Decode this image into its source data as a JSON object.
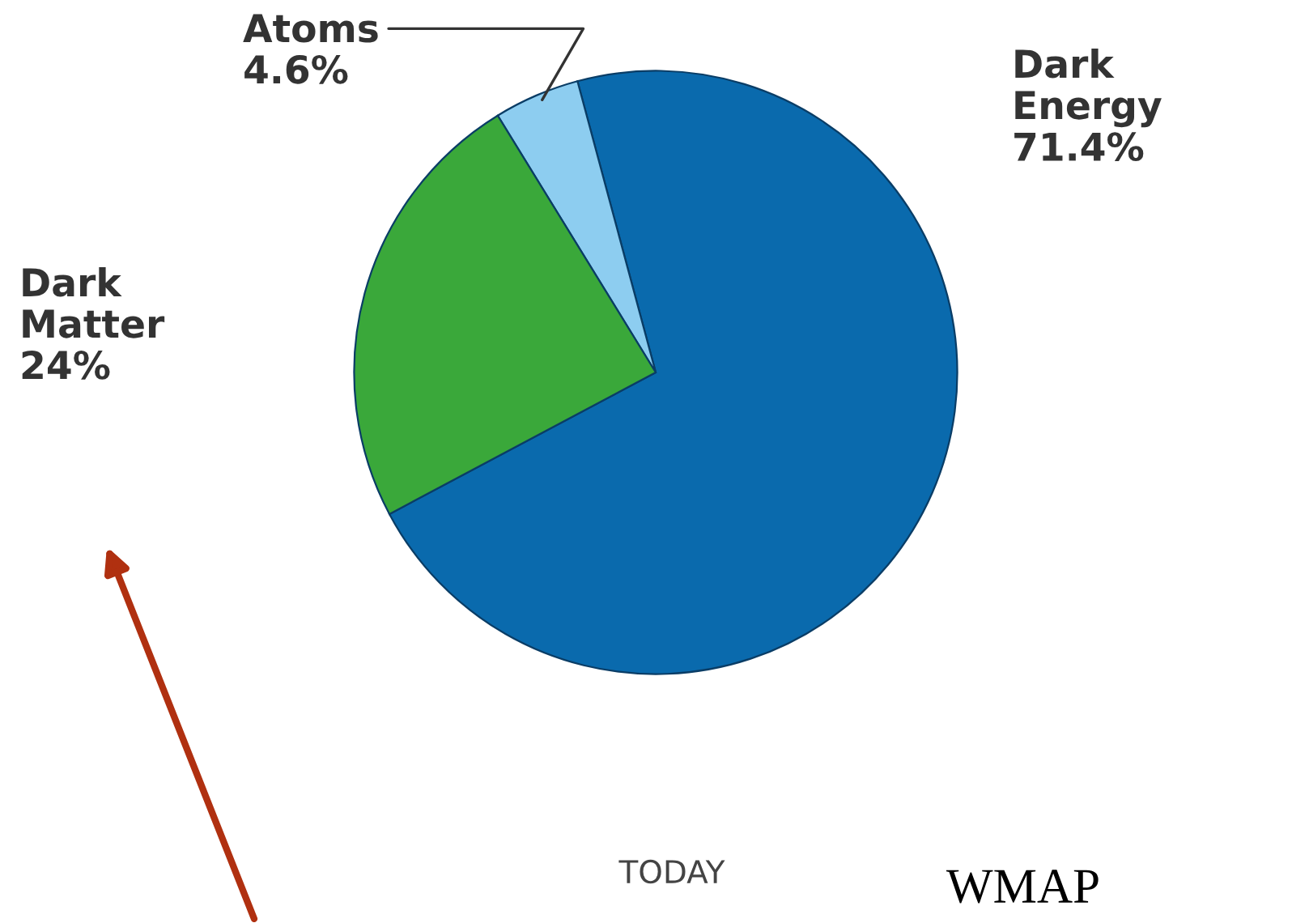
{
  "chart_data": {
    "type": "pie",
    "categories": [
      "Dark Energy",
      "Atoms",
      "Dark Matter"
    ],
    "values": [
      71.4,
      4.6,
      24
    ],
    "value_labels": [
      "71.4%",
      "4.6%",
      "24%"
    ],
    "colors": [
      "#0a6aad",
      "#8dcdf0",
      "#3aa83a"
    ],
    "annotations": [
      "TODAY",
      "WMAP"
    ],
    "legend": false
  }
}
